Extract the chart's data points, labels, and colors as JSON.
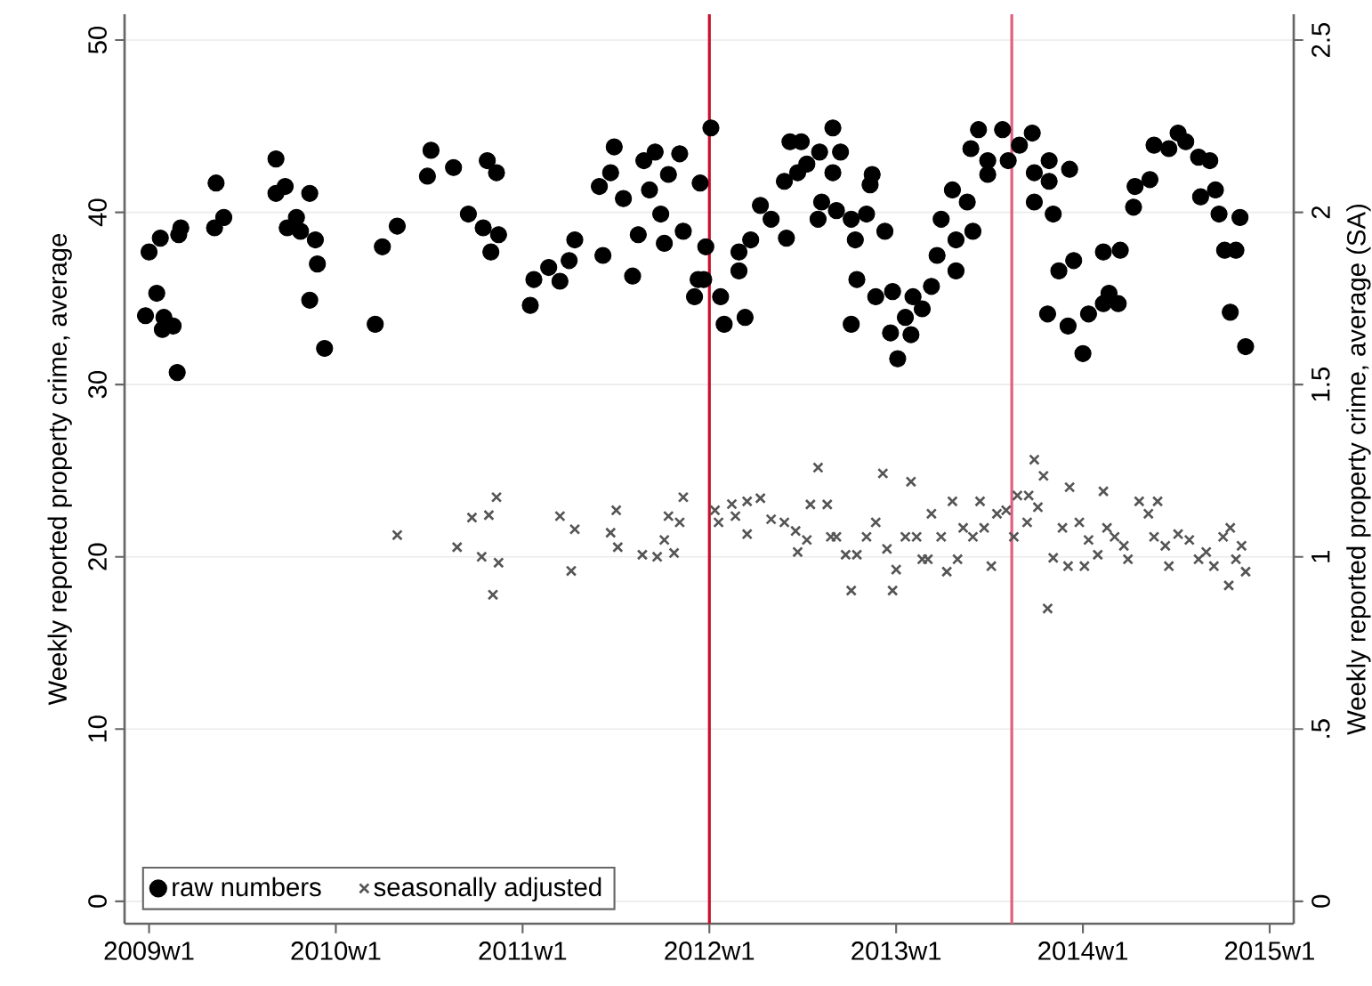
{
  "chart_data": {
    "type": "scatter",
    "ylabel": "Weekly reported property crime, average",
    "y2label": "Weekly reported property crime, average (SA)",
    "xlim": [
      "2008-11-14",
      "2015-02-17"
    ],
    "ylim": [
      -1.3,
      51.5
    ],
    "y2lim": [
      -0.065,
      2.575
    ],
    "xticks": [
      {
        "value": "2009-01-01",
        "label": "2009w1"
      },
      {
        "value": "2010-01-01",
        "label": "2010w1"
      },
      {
        "value": "2011-01-01",
        "label": "2011w1"
      },
      {
        "value": "2012-01-01",
        "label": "2012w1"
      },
      {
        "value": "2013-01-01",
        "label": "2013w1"
      },
      {
        "value": "2014-01-01",
        "label": "2014w1"
      },
      {
        "value": "2015-01-01",
        "label": "2015w1"
      }
    ],
    "yticks": [
      0,
      10,
      20,
      30,
      40,
      50
    ],
    "y2ticks": [
      0,
      {
        "value": 0.5,
        "label": ".5"
      },
      1,
      1.5,
      2,
      2.5
    ],
    "grid": "y",
    "legend": "bottom left",
    "ref_lines": [
      {
        "axis": "x",
        "value": "2012-01-01",
        "color": "#c8102e"
      },
      {
        "axis": "x",
        "value": "2013-08-15",
        "color": "#e0607e"
      }
    ],
    "series": [
      {
        "name": "raw numbers",
        "color": "#000000",
        "marker": "circle",
        "x": [
          "2009-01-01",
          "2009-01-23",
          "2009-03-04",
          "2009-02-28",
          "2009-01-16",
          "2008-12-25",
          "2009-01-30",
          "2009-01-27",
          "2009-02-17",
          "2009-02-25",
          "2009-05-12",
          "2009-05-27",
          "2009-05-09",
          "2009-09-06",
          "2009-09-06",
          "2009-09-24",
          "2009-11-11",
          "2009-10-16",
          "2009-09-28",
          "2009-10-24",
          "2009-11-22",
          "2009-11-26",
          "2009-11-11",
          "2009-12-10",
          "2010-03-19",
          "2010-04-02",
          "2010-05-01",
          "2010-07-06",
          "2010-06-29",
          "2010-08-19",
          "2010-10-24",
          "2010-11-11",
          "2010-09-17",
          "2010-10-16",
          "2010-11-15",
          "2010-10-31",
          "2011-01-16",
          "2011-01-23",
          "2011-02-21",
          "2011-03-15",
          "2011-04-02",
          "2011-04-13",
          "2011-06-07",
          "2011-08-04",
          "2011-08-15",
          "2011-05-31",
          "2011-06-29",
          "2011-06-22",
          "2011-07-17",
          "2011-08-26",
          "2011-09-17",
          "2011-09-06",
          "2011-09-28",
          "2011-10-05",
          "2011-11-04",
          "2011-11-11",
          "2011-10-13",
          "2011-12-14",
          "2011-12-03",
          "2011-12-10",
          "2012-01-04",
          "2011-12-25",
          "2011-12-21",
          "2012-01-23",
          "2012-01-30",
          "2012-03-11",
          "2012-02-28",
          "2012-02-28",
          "2012-03-22",
          "2012-04-10",
          "2012-05-01",
          "2012-05-31",
          "2012-05-27",
          "2012-06-07",
          "2012-06-29",
          "2012-06-22",
          "2012-07-10",
          "2012-08-04",
          "2012-08-30",
          "2012-09-14",
          "2012-08-30",
          "2012-08-08",
          "2012-08-01",
          "2012-09-06",
          "2012-10-05",
          "2012-10-13",
          "2012-11-04",
          "2012-11-11",
          "2012-11-15",
          "2012-12-10",
          "2012-10-16",
          "2012-10-05",
          "2012-11-22",
          "2012-12-25",
          "2012-12-21",
          "2013-01-04",
          "2013-01-19",
          "2013-02-03",
          "2013-01-30",
          "2013-02-21",
          "2013-03-11",
          "2013-03-22",
          "2013-03-30",
          "2013-04-21",
          "2013-04-28",
          "2013-04-28",
          "2013-05-20",
          "2013-05-31",
          "2013-05-27",
          "2013-06-11",
          "2013-06-29",
          "2013-06-29",
          "2013-07-28",
          "2013-08-08",
          "2013-08-30",
          "2013-09-24",
          "2013-09-28",
          "2013-10-27",
          "2013-12-06",
          "2013-10-27",
          "2013-09-28",
          "2013-11-04",
          "2013-10-24",
          "2013-11-15",
          "2013-12-14",
          "2013-12-03",
          "2014-01-01",
          "2014-01-12",
          "2014-02-10",
          "2014-02-21",
          "2014-02-10",
          "2014-03-15",
          "2014-03-11",
          "2014-04-10",
          "2014-04-13",
          "2014-05-12",
          "2014-05-20",
          "2014-06-18",
          "2014-07-06",
          "2014-07-21",
          "2014-08-15",
          "2014-09-06",
          "2014-08-19",
          "2014-09-17",
          "2014-09-24",
          "2014-11-04",
          "2014-10-05",
          "2014-10-27",
          "2014-10-16",
          "2014-11-15"
        ],
        "values": [
          37.7,
          38.5,
          39.1,
          38.7,
          35.3,
          34.0,
          33.9,
          33.2,
          33.4,
          30.7,
          41.7,
          39.7,
          39.1,
          43.1,
          41.1,
          41.5,
          41.1,
          39.7,
          39.1,
          38.9,
          38.4,
          37.0,
          34.9,
          32.1,
          33.5,
          38.0,
          39.2,
          43.6,
          42.1,
          42.6,
          43.0,
          42.3,
          39.9,
          39.1,
          38.7,
          37.7,
          34.6,
          36.1,
          36.8,
          36.0,
          37.2,
          38.4,
          37.5,
          36.3,
          38.7,
          41.5,
          43.8,
          42.3,
          40.8,
          43.0,
          43.5,
          41.3,
          39.9,
          38.2,
          43.4,
          38.9,
          42.2,
          41.7,
          35.1,
          36.1,
          44.9,
          38.0,
          36.1,
          35.1,
          33.5,
          33.9,
          36.6,
          37.7,
          38.4,
          40.4,
          39.6,
          38.5,
          41.8,
          44.1,
          44.1,
          42.3,
          42.8,
          43.5,
          44.9,
          43.5,
          42.3,
          40.6,
          39.6,
          40.1,
          39.6,
          38.4,
          39.9,
          41.6,
          42.2,
          38.9,
          36.1,
          33.5,
          35.1,
          35.4,
          33.0,
          31.5,
          33.9,
          35.1,
          32.9,
          34.4,
          35.7,
          37.5,
          39.6,
          41.3,
          38.4,
          36.6,
          40.6,
          38.9,
          43.7,
          44.8,
          42.2,
          43.0,
          44.8,
          43.0,
          43.9,
          44.6,
          42.3,
          43.0,
          42.5,
          41.8,
          40.6,
          39.9,
          34.1,
          36.6,
          37.2,
          33.4,
          31.8,
          34.1,
          34.7,
          35.3,
          37.7,
          37.8,
          34.7,
          40.3,
          41.5,
          41.9,
          43.9,
          43.7,
          44.6,
          44.1,
          43.2,
          43.0,
          40.9,
          41.3,
          39.9,
          39.7,
          37.8,
          37.8,
          34.2,
          32.2
        ]
      },
      {
        "name": "seasonally adjusted",
        "color": "#555555",
        "marker": "cross",
        "axis": "y2",
        "x": [
          "2010-05-01",
          "2010-08-26",
          "2010-09-24",
          "2010-10-27",
          "2010-11-11",
          "2010-10-13",
          "2010-11-15",
          "2010-11-04",
          "2011-03-15",
          "2011-04-13",
          "2011-04-06",
          "2011-07-03",
          "2011-06-22",
          "2011-07-06",
          "2011-08-23",
          "2011-09-21",
          "2011-10-24",
          "2011-10-05",
          "2011-10-13",
          "2011-11-04",
          "2011-11-11",
          "2012-01-12",
          "2012-01-19",
          "2012-02-14",
          "2012-02-21",
          "2012-03-15",
          "2012-03-15",
          "2012-04-10",
          "2012-05-01",
          "2012-05-27",
          "2012-06-18",
          "2012-06-22",
          "2012-07-10",
          "2012-08-01",
          "2012-07-17",
          "2012-08-19",
          "2012-08-26",
          "2012-09-06",
          "2012-09-24",
          "2012-10-16",
          "2012-10-05",
          "2012-11-04",
          "2012-11-22",
          "2012-12-06",
          "2012-12-14",
          "2013-01-01",
          "2012-12-25",
          "2013-01-19",
          "2013-01-30",
          "2013-02-10",
          "2013-02-21",
          "2013-03-04",
          "2013-03-11",
          "2013-03-30",
          "2013-04-10",
          "2013-04-21",
          "2013-05-01",
          "2013-05-12",
          "2013-05-31",
          "2013-06-14",
          "2013-06-22",
          "2013-07-06",
          "2013-07-17",
          "2013-08-04",
          "2013-08-19",
          "2013-08-26",
          "2013-09-14",
          "2013-09-17",
          "2013-09-28",
          "2013-10-16",
          "2013-10-05",
          "2013-10-24",
          "2013-11-04",
          "2013-11-22",
          "2013-12-06",
          "2013-12-03",
          "2013-12-25",
          "2014-01-04",
          "2014-01-12",
          "2014-01-30",
          "2014-02-10",
          "2014-02-17",
          "2014-03-04",
          "2014-03-22",
          "2014-03-30",
          "2014-04-21",
          "2014-05-09",
          "2014-05-27",
          "2014-05-20",
          "2014-06-11",
          "2014-06-18",
          "2014-07-06",
          "2014-07-28",
          "2014-08-15",
          "2014-08-30",
          "2014-09-14",
          "2014-10-02",
          "2014-10-16",
          "2014-10-13",
          "2014-10-27",
          "2014-11-07",
          "2014-11-15"
        ],
        "values": [
          1.063,
          1.028,
          1.114,
          1.121,
          1.173,
          1.0,
          0.983,
          0.89,
          1.118,
          1.08,
          0.959,
          1.135,
          1.07,
          1.028,
          1.006,
          1.0,
          1.011,
          1.049,
          1.118,
          1.1,
          1.173,
          1.135,
          1.1,
          1.153,
          1.118,
          1.066,
          1.161,
          1.17,
          1.109,
          1.1,
          1.075,
          1.014,
          1.049,
          1.259,
          1.152,
          1.152,
          1.058,
          1.058,
          1.006,
          1.006,
          0.902,
          1.058,
          1.1,
          1.242,
          1.023,
          0.963,
          0.902,
          1.058,
          1.218,
          1.058,
          0.993,
          0.993,
          1.125,
          1.058,
          0.957,
          1.161,
          0.993,
          1.084,
          1.058,
          1.161,
          1.084,
          0.973,
          1.125,
          1.135,
          1.058,
          1.178,
          1.1,
          1.178,
          1.282,
          1.235,
          1.144,
          0.85,
          0.997,
          1.084,
          1.202,
          0.973,
          1.1,
          0.973,
          1.049,
          1.006,
          1.19,
          1.084,
          1.058,
          1.032,
          0.993,
          1.161,
          1.125,
          1.161,
          1.058,
          1.032,
          0.973,
          1.066,
          1.049,
          0.993,
          1.014,
          0.973,
          1.058,
          1.084,
          0.917,
          0.993,
          1.032,
          0.957
        ]
      }
    ]
  }
}
